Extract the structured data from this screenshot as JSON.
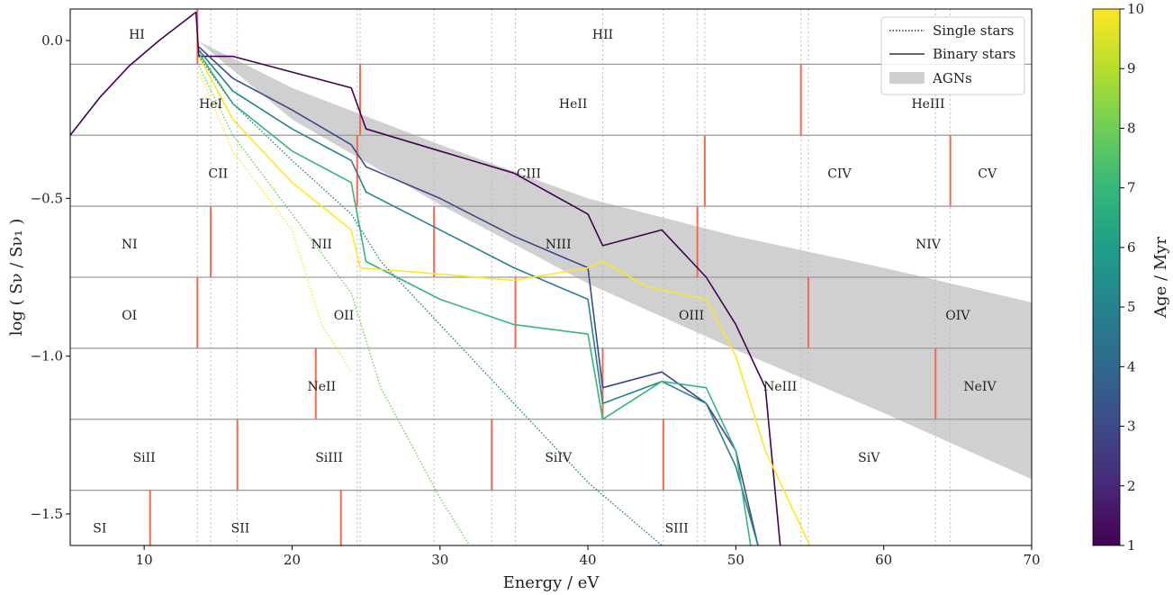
{
  "chart_data": {
    "type": "line",
    "xlabel": "Energy / eV",
    "ylabel": "log ( Sν / Sν₁ )",
    "xlim": [
      5,
      70
    ],
    "ylim": [
      -1.6,
      0.1
    ],
    "x_ticks": [
      10,
      20,
      30,
      40,
      50,
      60,
      70
    ],
    "x_tick_labels": [
      "10",
      "20",
      "30",
      "40",
      "50",
      "60",
      "70"
    ],
    "y_ticks": [
      0.0,
      -0.5,
      -1.0,
      -1.5
    ],
    "y_tick_labels": [
      "0.0",
      "−0.5",
      "−1.0",
      "−1.5"
    ],
    "grid": false,
    "legend_position": "top-right",
    "legend": [
      {
        "label": "Single stars",
        "style": "dotted"
      },
      {
        "label": "Binary stars",
        "style": "solid"
      },
      {
        "label": "AGNs",
        "style": "band"
      }
    ],
    "colorbar": {
      "label": "Age / Myr",
      "range": [
        1,
        10
      ],
      "ticks": [
        1,
        2,
        3,
        4,
        5,
        6,
        7,
        8,
        9,
        10
      ],
      "tick_labels": [
        "1",
        "2",
        "3",
        "4",
        "5",
        "6",
        "7",
        "8",
        "9",
        "10"
      ],
      "colormap": [
        "#440154",
        "#482878",
        "#3e4989",
        "#31688e",
        "#26828e",
        "#1f9e89",
        "#35b779",
        "#6ece58",
        "#b5de2b",
        "#fde725"
      ]
    },
    "element_row_boundaries": [
      -0.075,
      -0.3,
      -0.525,
      -0.75,
      -0.975,
      -1.2,
      -1.425
    ],
    "ion_labels": [
      {
        "label": "HI",
        "x": 9.5,
        "y": 0.02
      },
      {
        "label": "HII",
        "x": 41,
        "y": 0.02
      },
      {
        "label": "HeI",
        "x": 14.5,
        "y": -0.2
      },
      {
        "label": "HeII",
        "x": 39,
        "y": -0.2
      },
      {
        "label": "HeIII",
        "x": 63,
        "y": -0.2
      },
      {
        "label": "CII",
        "x": 15,
        "y": -0.42
      },
      {
        "label": "CIII",
        "x": 36,
        "y": -0.42
      },
      {
        "label": "CIV",
        "x": 57,
        "y": -0.42
      },
      {
        "label": "CV",
        "x": 67,
        "y": -0.42
      },
      {
        "label": "NI",
        "x": 9,
        "y": -0.645
      },
      {
        "label": "NII",
        "x": 22,
        "y": -0.645
      },
      {
        "label": "NIII",
        "x": 38,
        "y": -0.645
      },
      {
        "label": "NIV",
        "x": 63,
        "y": -0.645
      },
      {
        "label": "OI",
        "x": 9,
        "y": -0.87
      },
      {
        "label": "OII",
        "x": 23.5,
        "y": -0.87
      },
      {
        "label": "OIII",
        "x": 47,
        "y": -0.87
      },
      {
        "label": "OIV",
        "x": 65,
        "y": -0.87
      },
      {
        "label": "NeII",
        "x": 22,
        "y": -1.095
      },
      {
        "label": "NeIII",
        "x": 53,
        "y": -1.095
      },
      {
        "label": "NeIV",
        "x": 66.5,
        "y": -1.095
      },
      {
        "label": "SiII",
        "x": 10,
        "y": -1.32
      },
      {
        "label": "SiIII",
        "x": 22.5,
        "y": -1.32
      },
      {
        "label": "SiIV",
        "x": 38,
        "y": -1.32
      },
      {
        "label": "SiV",
        "x": 59,
        "y": -1.32
      },
      {
        "label": "SI",
        "x": 7,
        "y": -1.545
      },
      {
        "label": "SII",
        "x": 16.5,
        "y": -1.545
      },
      {
        "label": "SIII",
        "x": 46,
        "y": -1.545
      }
    ],
    "ionization_markers": [
      {
        "x": 13.6,
        "row": 0
      },
      {
        "x": 24.6,
        "row": 1
      },
      {
        "x": 54.4,
        "row": 1
      },
      {
        "x": 24.4,
        "row": 2
      },
      {
        "x": 47.9,
        "row": 2
      },
      {
        "x": 64.5,
        "row": 2
      },
      {
        "x": 14.5,
        "row": 3
      },
      {
        "x": 29.6,
        "row": 3
      },
      {
        "x": 47.4,
        "row": 3
      },
      {
        "x": 13.6,
        "row": 4
      },
      {
        "x": 35.1,
        "row": 4
      },
      {
        "x": 54.9,
        "row": 4
      },
      {
        "x": 21.6,
        "row": 5
      },
      {
        "x": 41.0,
        "row": 5
      },
      {
        "x": 63.5,
        "row": 5
      },
      {
        "x": 16.3,
        "row": 6
      },
      {
        "x": 33.5,
        "row": 6
      },
      {
        "x": 45.1,
        "row": 6
      },
      {
        "x": 10.4,
        "row": 7
      },
      {
        "x": 23.3,
        "row": 7
      }
    ],
    "reference_lines_x": [
      13.6,
      14.5,
      16.3,
      24.4,
      24.6,
      29.6,
      33.5,
      35.1,
      41.0,
      45.1,
      47.4,
      47.9,
      54.4,
      54.9,
      63.5,
      64.5
    ],
    "agn_band": {
      "x": [
        13.6,
        20,
        30,
        40,
        50,
        60,
        70
      ],
      "upper": [
        0.0,
        -0.15,
        -0.33,
        -0.5,
        -0.62,
        -0.72,
        -0.83
      ],
      "lower": [
        0.0,
        -0.25,
        -0.52,
        -0.77,
        -0.98,
        -1.18,
        -1.39
      ]
    },
    "series": [
      {
        "age_myr": 1,
        "kind": "binary",
        "x": [
          5,
          7,
          9,
          11,
          13.5,
          13.7,
          16,
          20,
          24,
          25,
          30,
          35,
          40,
          41,
          45,
          48,
          50,
          52,
          53
        ],
        "y": [
          -0.3,
          -0.18,
          -0.08,
          0.0,
          0.09,
          -0.05,
          -0.05,
          -0.1,
          -0.15,
          -0.28,
          -0.35,
          -0.42,
          -0.55,
          -0.65,
          -0.6,
          -0.75,
          -0.9,
          -1.1,
          -1.6
        ]
      },
      {
        "age_myr": 3,
        "kind": "binary",
        "x": [
          13.7,
          16,
          20,
          24,
          25,
          30,
          35,
          40,
          41,
          45,
          48,
          50,
          51.5
        ],
        "y": [
          -0.02,
          -0.12,
          -0.22,
          -0.33,
          -0.4,
          -0.5,
          -0.62,
          -0.72,
          -1.1,
          -1.05,
          -1.15,
          -1.3,
          -1.6
        ]
      },
      {
        "age_myr": 5,
        "kind": "binary",
        "x": [
          13.7,
          16,
          20,
          24,
          25,
          30,
          35,
          40,
          41,
          45,
          48,
          50,
          51.5
        ],
        "y": [
          -0.03,
          -0.16,
          -0.28,
          -0.38,
          -0.48,
          -0.6,
          -0.72,
          -0.82,
          -1.15,
          -1.08,
          -1.15,
          -1.35,
          -1.6
        ]
      },
      {
        "age_myr": 7,
        "kind": "binary",
        "x": [
          13.7,
          16,
          20,
          24,
          25,
          30,
          35,
          40,
          41,
          45,
          48,
          50,
          51
        ],
        "y": [
          -0.04,
          -0.2,
          -0.35,
          -0.45,
          -0.7,
          -0.82,
          -0.9,
          -0.93,
          -1.2,
          -1.08,
          -1.1,
          -1.3,
          -1.6
        ]
      },
      {
        "age_myr": 10,
        "kind": "binary",
        "x": [
          13.7,
          16,
          20,
          24,
          24.6,
          30,
          35,
          40,
          41,
          44,
          48,
          50,
          52,
          55
        ],
        "y": [
          -0.05,
          -0.25,
          -0.45,
          -0.6,
          -0.72,
          -0.74,
          -0.76,
          -0.72,
          -0.7,
          -0.78,
          -0.82,
          -1.0,
          -1.3,
          -1.6
        ]
      },
      {
        "age_myr": 5,
        "kind": "single",
        "x": [
          13.7,
          16,
          20,
          24,
          26,
          30,
          35,
          40,
          45
        ],
        "y": [
          -0.05,
          -0.2,
          -0.38,
          -0.55,
          -0.7,
          -0.9,
          -1.15,
          -1.4,
          -1.6
        ]
      },
      {
        "age_myr": 8,
        "kind": "single",
        "x": [
          13.7,
          16,
          20,
          24,
          26,
          30,
          32
        ],
        "y": [
          -0.08,
          -0.3,
          -0.55,
          -0.8,
          -1.1,
          -1.45,
          -1.6
        ]
      },
      {
        "age_myr": 10,
        "kind": "single",
        "x": [
          13.7,
          16,
          20,
          22,
          24
        ],
        "y": [
          -0.1,
          -0.35,
          -0.6,
          -0.9,
          -1.05
        ]
      }
    ]
  }
}
